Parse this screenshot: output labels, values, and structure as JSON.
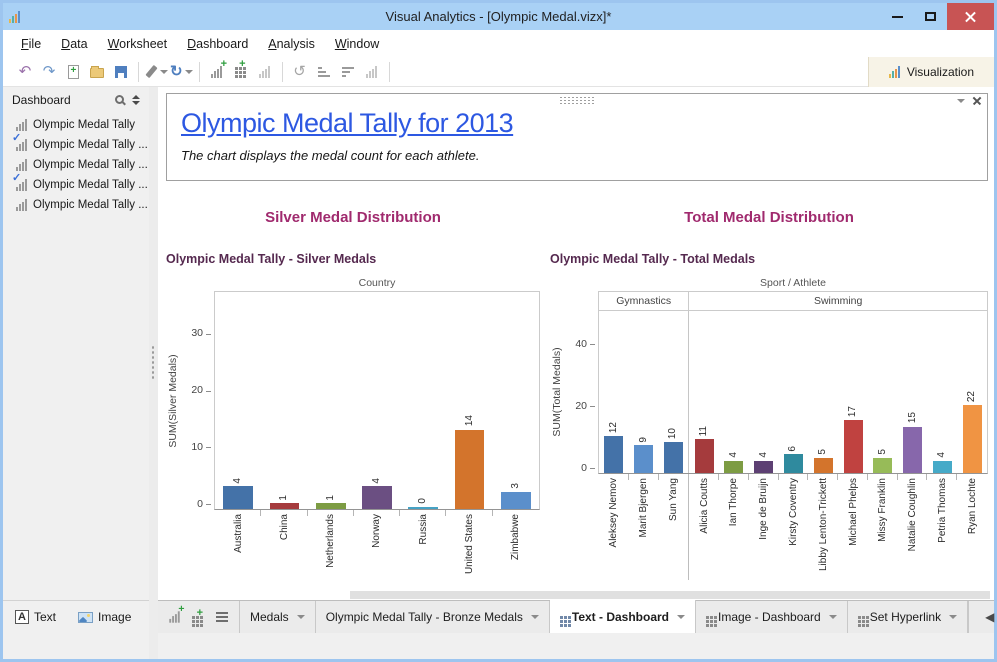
{
  "window": {
    "title": "Visual Analytics - [Olympic Medal.vizx]*"
  },
  "menu": {
    "items": [
      "File",
      "Data",
      "Worksheet",
      "Dashboard",
      "Analysis",
      "Window"
    ]
  },
  "toolbar": {
    "visualization_label": "Visualization"
  },
  "sidebar": {
    "header": "Dashboard",
    "items": [
      {
        "label": "Olympic Medal Tally",
        "checked": false
      },
      {
        "label": "Olympic Medal Tally ...",
        "checked": true
      },
      {
        "label": "Olympic Medal Tally ...",
        "checked": false
      },
      {
        "label": "Olympic Medal Tally ...",
        "checked": true
      },
      {
        "label": "Olympic Medal Tally ...",
        "checked": false
      }
    ],
    "footer": {
      "text_label": "Text",
      "image_label": "Image"
    }
  },
  "text_widget": {
    "title": "Olympic Medal Tally for 2013",
    "subtitle": "The chart displays the medal count for each athlete."
  },
  "sections": [
    {
      "header": "Silver Medal Distribution"
    },
    {
      "header": "Total Medal Distribution"
    }
  ],
  "chart_data": [
    {
      "type": "bar",
      "title": "Olympic Medal Tally - Silver Medals",
      "top_axis_label": "Country",
      "ylabel": "SUM(Silver Medals)",
      "yticks": [
        0,
        10,
        20,
        30
      ],
      "ylim": [
        0,
        37
      ],
      "grid": false,
      "legend": false,
      "categories": [
        "Australia",
        "China",
        "Netherlands",
        "Norway",
        "Russia",
        "United States",
        "Zimbabwe"
      ],
      "values": [
        4,
        1,
        1,
        4,
        0,
        14,
        3
      ],
      "colors": [
        "#4472a8",
        "#a53b3d",
        "#7d9c43",
        "#6b4f82",
        "#46a2c4",
        "#d3742c",
        "#5b8fcb"
      ]
    },
    {
      "type": "bar",
      "title": "Olympic Medal Tally - Total Medals",
      "top_axis_label": "Sport / Athlete",
      "ylabel": "SUM(Total Medals)",
      "yticks": [
        0,
        20,
        40
      ],
      "ylim": [
        0,
        50
      ],
      "grid": false,
      "legend": false,
      "groups": [
        {
          "label": "Gymnastics",
          "count": 3
        },
        {
          "label": "Swimming",
          "count": 10
        }
      ],
      "categories": [
        "Aleksey Nemov",
        "Marit Bjergen",
        "Sun Yang",
        "Alicia Coutts",
        "Ian Thorpe",
        "Inge de Bruijn",
        "Kirsty Coventry",
        "Libby Lenton-Trickett",
        "Michael Phelps",
        "Missy Franklin",
        "Natalie Coughlin",
        "Petria Thomas",
        "Ryan Lochte"
      ],
      "values": [
        12,
        9,
        10,
        11,
        4,
        4,
        6,
        5,
        17,
        5,
        15,
        4,
        22
      ],
      "colors": [
        "#4472a8",
        "#5b8fcb",
        "#4472a8",
        "#a53b3d",
        "#7d9c43",
        "#5d4073",
        "#2f8a9e",
        "#d3742c",
        "#c04240",
        "#97bb58",
        "#8767ab",
        "#46aac8",
        "#f09443"
      ]
    }
  ],
  "tabbar": {
    "tabs": [
      {
        "label": "Medals",
        "active": false,
        "has_icon": false
      },
      {
        "label": "Olympic Medal Tally - Bronze Medals",
        "active": false,
        "has_icon": false
      },
      {
        "label": "Text - Dashboard",
        "active": true,
        "has_icon": true
      },
      {
        "label": "Image - Dashboard",
        "active": false,
        "has_icon": true
      },
      {
        "label": "Set Hyperlink",
        "active": false,
        "has_icon": true
      }
    ]
  }
}
